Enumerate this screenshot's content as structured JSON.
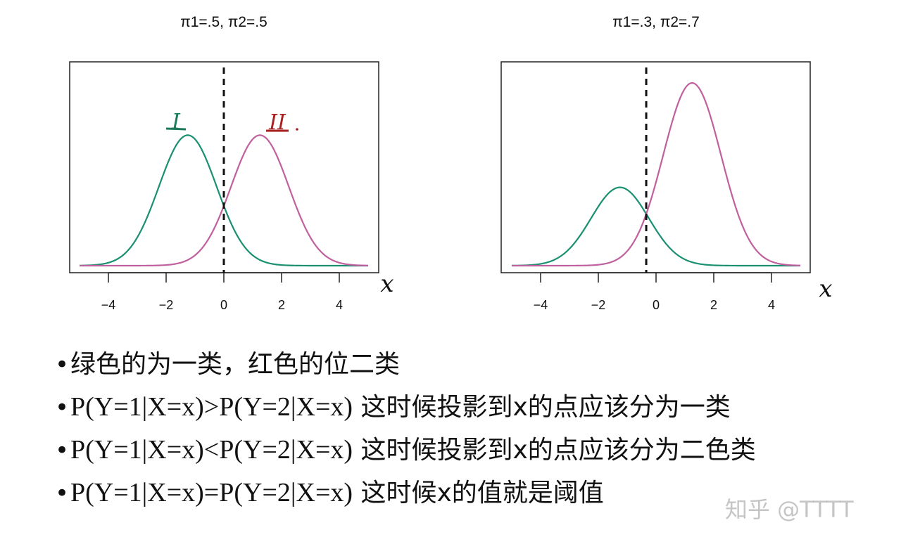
{
  "chart_data": [
    {
      "type": "line",
      "title": "π1=.5,   π2=.5",
      "xlim": [
        -5,
        5
      ],
      "xticks": [
        "−4",
        "−2",
        "0",
        "2",
        "4"
      ],
      "xtick_values": [
        -4,
        -2,
        0,
        2,
        4
      ],
      "grid": false,
      "series": [
        {
          "mu": -1.25,
          "sigma": 1.0,
          "weight": 0.5,
          "color": "#1a9070"
        },
        {
          "mu": 1.25,
          "sigma": 1.0,
          "weight": 0.5,
          "color": "#c0609f"
        }
      ],
      "threshold": 0,
      "annotations": {
        "green_label": "I",
        "red_label": "II",
        "axis_mark": "x"
      }
    },
    {
      "type": "line",
      "title": "π1=.3,   π2=.7",
      "xlim": [
        -5,
        5
      ],
      "xticks": [
        "−4",
        "−2",
        "0",
        "2",
        "4"
      ],
      "xtick_values": [
        -4,
        -2,
        0,
        2,
        4
      ],
      "grid": false,
      "series": [
        {
          "mu": -1.25,
          "sigma": 1.0,
          "weight": 0.3,
          "color": "#1a9070"
        },
        {
          "mu": 1.25,
          "sigma": 1.0,
          "weight": 0.7,
          "color": "#c0609f"
        }
      ],
      "threshold": -0.34,
      "annotations": {
        "axis_mark": "x"
      }
    }
  ],
  "bullets": [
    {
      "formula": "",
      "text": "绿色的为一类，红色的位二类"
    },
    {
      "formula": "P(Y=1|X=x)>P(Y=2|X=x)",
      "text": " 这时候投影到x的点应该分为一类"
    },
    {
      "formula": "P(Y=1|X=x)<P(Y=2|X=x)",
      "text": " 这时候投影到x的点应该分为二色类"
    },
    {
      "formula": "P(Y=1|X=x)=P(Y=2|X=x)",
      "text": " 这时候x的值就是阈值"
    }
  ],
  "watermark": "知乎 @TTTT"
}
